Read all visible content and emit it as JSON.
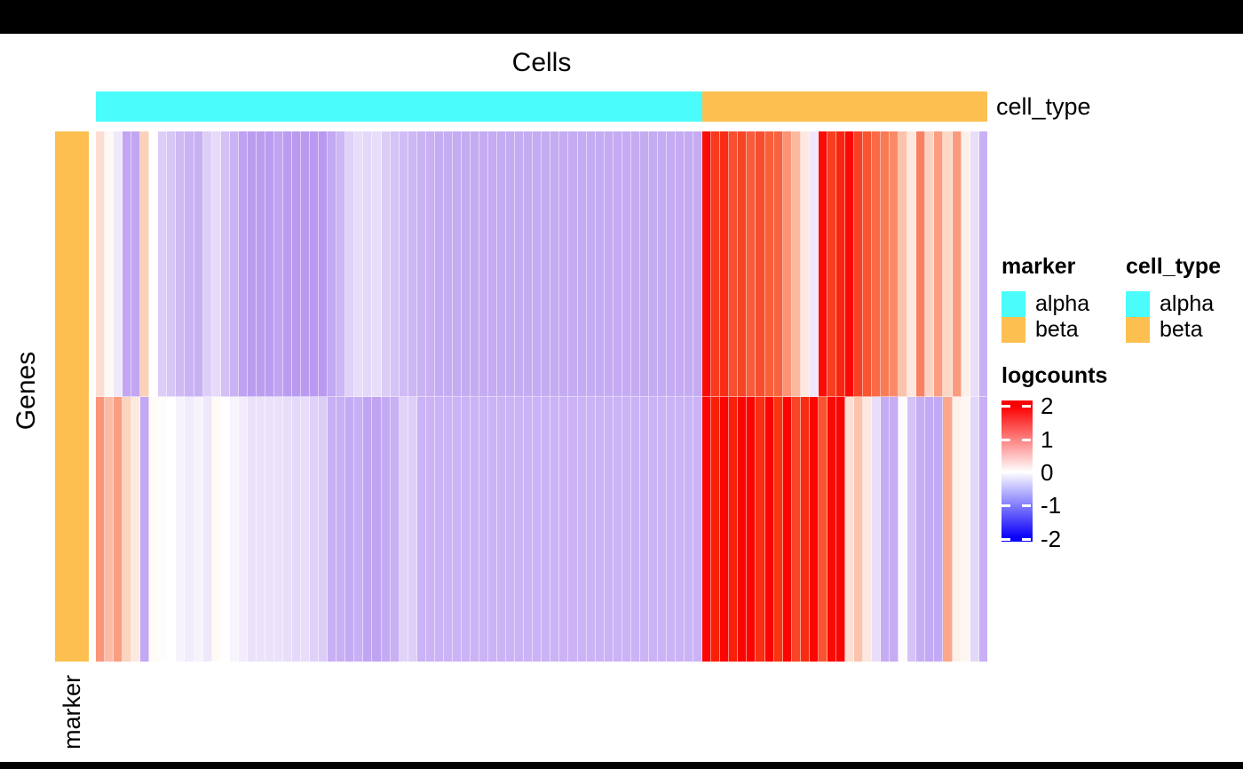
{
  "titles": {
    "x_title": "Cells",
    "y_title": "Genes",
    "row_annotation": "marker",
    "col_annotation": "cell_type"
  },
  "legends": {
    "marker": {
      "title": "marker",
      "items": [
        {
          "label": "alpha",
          "color": "#4BFCFC"
        },
        {
          "label": "beta",
          "color": "#FDBF4F"
        }
      ]
    },
    "cell_type": {
      "title": "cell_type",
      "items": [
        {
          "label": "alpha",
          "color": "#4BFCFC"
        },
        {
          "label": "beta",
          "color": "#FDBF4F"
        }
      ]
    },
    "logcounts": {
      "title": "logcounts",
      "ticks": [
        "2",
        "1",
        "0",
        "-1",
        "-2"
      ],
      "gradient": [
        "#FB0000",
        "#FFFFFF",
        "#0B00FA"
      ]
    }
  },
  "chart_data": {
    "type": "heatmap",
    "title": "Cells",
    "xlabel": "Cells",
    "ylabel": "Genes",
    "n_rows": 2,
    "n_cols": 100,
    "col_annotation": {
      "name": "cell_type",
      "groups": [
        {
          "label": "alpha",
          "color": "#4BFCFC",
          "n_cols": 68
        },
        {
          "label": "beta",
          "color": "#FDBF4F",
          "n_cols": 32
        }
      ]
    },
    "row_annotation": {
      "name": "marker",
      "values": [
        "beta",
        "beta"
      ],
      "colors": [
        "#FDBF4F",
        "#FDBF4F"
      ]
    },
    "colorscale": {
      "name": "logcounts",
      "min": -2,
      "max": 2,
      "tick_values": [
        2,
        1,
        0,
        -1,
        -2
      ],
      "stops": [
        {
          "value": 2,
          "color": "#FF0000"
        },
        {
          "value": 0,
          "color": "#FFFFFF"
        },
        {
          "value": -2,
          "color": "#0000FF"
        }
      ]
    },
    "cell_colors": {
      "row1": [
        "#fcded2",
        "#fef8f6",
        "#efe9fb",
        "#c2a6f2",
        "#c2a6f2",
        "#fbd2b8",
        "#ffffff",
        "#dccdf7",
        "#d7c6f6",
        "#cfbaf4",
        "#cab3f3",
        "#c8b0f3",
        "#ddcef7",
        "#e5daf9",
        "#d3c0f5",
        "#cab3f3",
        "#bfa2f1",
        "#bb9df0",
        "#bb9df0",
        "#bb9df0",
        "#c1a5f1",
        "#bb9df0",
        "#b99af0",
        "#b99af0",
        "#b99af0",
        "#b99af0",
        "#c3a8f2",
        "#cdb7f4",
        "#e0d2f8",
        "#e8def9",
        "#e4d8f9",
        "#e8def9",
        "#dccdf7",
        "#d5c2f6",
        "#d0bcf5",
        "#cdb7f4",
        "#cab3f3",
        "#c8b0f3",
        "#c6adf3",
        "#c6adf3",
        "#c5abf2",
        "#c5abf2",
        "#c5abf2",
        "#c5abf2",
        "#c5abf2",
        "#c5abf2",
        "#c5abf2",
        "#c5abf2",
        "#c5abf2",
        "#c5abf2",
        "#c5abf2",
        "#c5abf2",
        "#c5abf2",
        "#c5abf2",
        "#c5abf2",
        "#c5abf2",
        "#c5abf2",
        "#c5abf2",
        "#c5abf2",
        "#c5abf2",
        "#c5abf2",
        "#c5abf2",
        "#c5abf2",
        "#c5abf2",
        "#c5abf2",
        "#c5abf2",
        "#c5abf2",
        "#c5abf2",
        "#fb0b06",
        "#f83a1e",
        "#f82d15",
        "#f74f30",
        "#f64426",
        "#f75c3c",
        "#f74e2f",
        "#f96037",
        "#f7633e",
        "#fa9475",
        "#fbbaa0",
        "#fde9e1",
        "#efe7fb",
        "#fb0d06",
        "#f73e21",
        "#f92510",
        "#fb0a05",
        "#f84124",
        "#f7552f",
        "#f96a47",
        "#f87b55",
        "#fa8a67",
        "#fcc3ac",
        "#fde8df",
        "#f98163",
        "#fcd3c2",
        "#fa9d80",
        "#fcd7c6",
        "#fa9b7e",
        "#fdf0ea",
        "#e9def9",
        "#c9b0f5"
      ],
      "row2": [
        "#f9967a",
        "#fbbca6",
        "#fa9e81",
        "#fcd4c0",
        "#fdeade",
        "#c3a8f3",
        "#fffbf7",
        "#fffdfb",
        "#ffffff",
        "#f7f3fd",
        "#f1ebfc",
        "#f7f3fd",
        "#efe8fb",
        "#fffaf5",
        "#ffffff",
        "#f8f4fd",
        "#f2ecfc",
        "#ebe2fa",
        "#ebe2fa",
        "#ebe2fa",
        "#ebe2fa",
        "#e8def9",
        "#e4d9f9",
        "#e8def9",
        "#dfd1f8",
        "#dccdf7",
        "#c9b0f5",
        "#c9b0f5",
        "#c5abf4",
        "#c9b0f5",
        "#c2a5f2",
        "#c0a3f1",
        "#c5abf4",
        "#c9b0f5",
        "#e0d3f8",
        "#ddcff8",
        "#cbb3f6",
        "#cbb3f6",
        "#cbb3f6",
        "#cbb3f6",
        "#cbb3f6",
        "#cbb3f6",
        "#cbb3f6",
        "#cbb3f6",
        "#cbb3f6",
        "#cbb3f6",
        "#cbb3f6",
        "#cbb3f6",
        "#cbb3f6",
        "#cbb3f6",
        "#cbb3f6",
        "#cbb3f6",
        "#cbb3f6",
        "#cbb3f6",
        "#cbb3f6",
        "#cbb3f6",
        "#cbb3f6",
        "#cbb3f6",
        "#cbb3f6",
        "#cbb3f6",
        "#cbb3f6",
        "#cbb3f6",
        "#cbb3f6",
        "#cbb3f6",
        "#cbb3f6",
        "#cbb3f6",
        "#cbb3f6",
        "#cbb3f6",
        "#fb0603",
        "#f92008",
        "#fb0502",
        "#f92008",
        "#fb0502",
        "#fb0502",
        "#f92e12",
        "#fb0502",
        "#f9350f",
        "#fb0502",
        "#f84427",
        "#f92c11",
        "#fb0603",
        "#f8552f",
        "#fb0905",
        "#fb0502",
        "#fcdfd3",
        "#fbc4ae",
        "#fce8de",
        "#e9def9",
        "#c6acf4",
        "#c6acf4",
        "#fdfbff",
        "#d5c3f7",
        "#c7adf4",
        "#c4aaf4",
        "#c4aaf4",
        "#faa78c",
        "#fdf1ec",
        "#fdf6f1",
        "#e3d7f9",
        "#c9aff5"
      ]
    }
  }
}
